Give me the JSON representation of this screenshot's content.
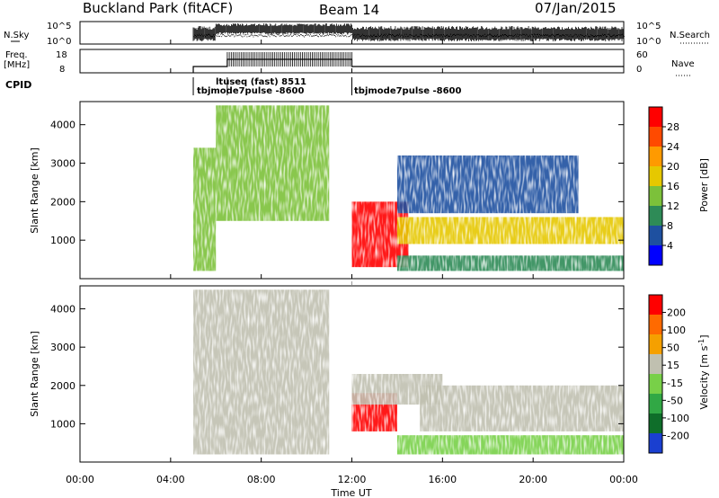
{
  "header": {
    "title": "Buckland Park (fitACF)",
    "beam": "Beam 14",
    "date": "07/Jan/2015"
  },
  "top_panels": {
    "nsky_label": "N.Sky",
    "nsky_ticks": [
      "10^5",
      "10^0"
    ],
    "nsearch_label": "N.Search",
    "nsearch_ticks": [
      "10^5",
      "10^0"
    ],
    "freq_label_line1": "Freq.",
    "freq_label_line2": "[MHz]",
    "freq_ticks": [
      "18",
      "8"
    ],
    "nave_label": "Nave",
    "nave_ticks": [
      "60",
      "0"
    ],
    "cpid_label": "CPID",
    "cpid_annotations": [
      {
        "text": "ltuseq (fast) 8511",
        "start_hour": 6.5
      },
      {
        "text": "tbjmode7pulse -8600",
        "start_hour": 5.0
      },
      {
        "text": "tbjmode7pulse -8600",
        "start_hour": 12.0
      }
    ]
  },
  "axes": {
    "ylabel": "Slant Range [km]",
    "xlabel": "Time UT",
    "x_ticks": [
      "00:00",
      "04:00",
      "08:00",
      "12:00",
      "16:00",
      "20:00",
      "00:00"
    ],
    "y_ticks": [
      "1000",
      "2000",
      "3000",
      "4000"
    ]
  },
  "colorbars": {
    "power_label": "Power [dB]",
    "power_ticks": [
      "28",
      "24",
      "20",
      "16",
      "12",
      "8",
      "4"
    ],
    "velocity_label": "Velocity [m s",
    "velocity_superscript": "-1",
    "velocity_label_close": "]",
    "velocity_ticks": [
      "200",
      "100",
      "50",
      "15",
      "-15",
      "-50",
      "-100",
      "-200"
    ]
  },
  "colors": {
    "power_scale": [
      "#0000ff",
      "#1e50a0",
      "#2e8b57",
      "#7cc13a",
      "#e6c800",
      "#ff9a00",
      "#ff4a00",
      "#ff0000"
    ],
    "velocity_scale": [
      "#1a3fd0",
      "#0f6e2a",
      "#31a845",
      "#78d048",
      "#c0c0b0",
      "#f5a000",
      "#ff6a00",
      "#ff0000"
    ]
  },
  "chart_data": [
    {
      "type": "heatmap",
      "name": "power",
      "x_range_hours": [
        0,
        24
      ],
      "ylim": [
        0,
        4600
      ],
      "clim": [
        0,
        32
      ],
      "regions": [
        {
          "t0": 5.0,
          "t1": 6.0,
          "r0": 200,
          "r1": 3400,
          "level": 12
        },
        {
          "t0": 6.0,
          "t1": 11.0,
          "r0": 1500,
          "r1": 4500,
          "level": 14
        },
        {
          "t0": 12.0,
          "t1": 14.5,
          "r0": 300,
          "r1": 2000,
          "level": 28
        },
        {
          "t0": 14.0,
          "t1": 24.0,
          "r0": 900,
          "r1": 1600,
          "level": 18
        },
        {
          "t0": 14.0,
          "t1": 24.0,
          "r0": 200,
          "r1": 600,
          "level": 10
        },
        {
          "t0": 14.0,
          "t1": 22.0,
          "r0": 1700,
          "r1": 3200,
          "level": 6
        }
      ]
    },
    {
      "type": "heatmap",
      "name": "velocity",
      "x_range_hours": [
        0,
        24
      ],
      "ylim": [
        0,
        4600
      ],
      "clim": [
        -250,
        250
      ],
      "regions": [
        {
          "t0": 5.0,
          "t1": 11.0,
          "r0": 200,
          "r1": 4500,
          "level": 0
        },
        {
          "t0": 12.0,
          "t1": 14.0,
          "r0": 800,
          "r1": 1800,
          "level": 200
        },
        {
          "t0": 12.0,
          "t1": 16.0,
          "r0": 1500,
          "r1": 2300,
          "level": 60
        },
        {
          "t0": 15.0,
          "t1": 24.0,
          "r0": 800,
          "r1": 2000,
          "level": 0
        },
        {
          "t0": 14.0,
          "t1": 24.0,
          "r0": 200,
          "r1": 700,
          "level": -60
        }
      ]
    }
  ]
}
